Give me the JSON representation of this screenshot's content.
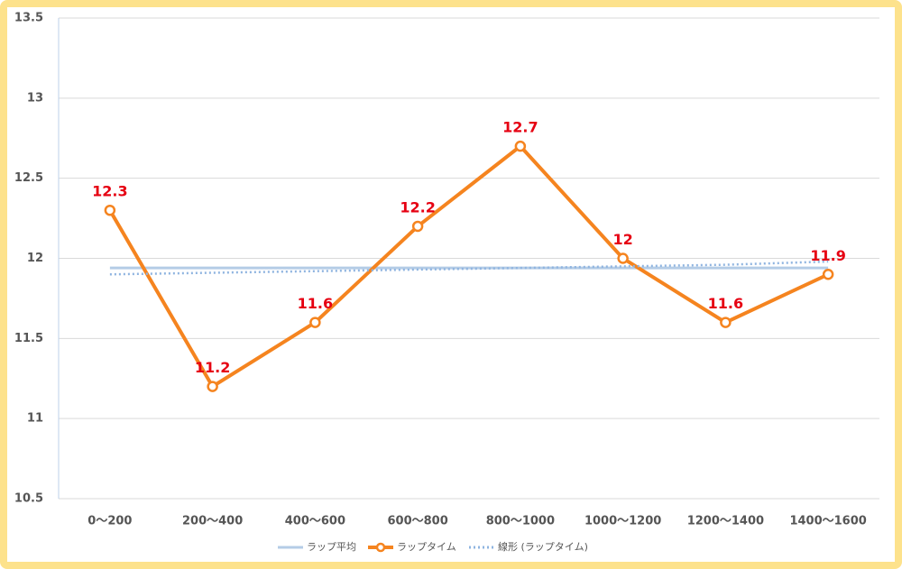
{
  "chart_data": {
    "type": "line",
    "categories": [
      "0～200",
      "200～400",
      "400～600",
      "600～800",
      "800～1000",
      "1000～1200",
      "1200～1400",
      "1400～1600"
    ],
    "series": [
      {
        "name": "ラップ平均",
        "color": "#b4cce6",
        "style": "solid",
        "values": [
          11.94,
          11.94,
          11.94,
          11.94,
          11.94,
          11.94,
          11.94,
          11.94
        ]
      },
      {
        "name": "ラップタイム",
        "color": "#f5841f",
        "style": "marker",
        "data_labels": true,
        "label_color": "#e60012",
        "values": [
          12.3,
          11.2,
          11.6,
          12.2,
          12.7,
          12,
          11.6,
          11.9
        ]
      },
      {
        "name": "線形 (ラップタイム)",
        "color": "#8fb4e0",
        "style": "dotted",
        "values": [
          11.9,
          11.91,
          11.92,
          11.93,
          11.94,
          11.95,
          11.96,
          11.98
        ]
      }
    ],
    "ylim": [
      10.5,
      13.5
    ],
    "yticks": [
      10.5,
      11,
      11.5,
      12,
      12.5,
      13,
      13.5
    ],
    "grid": true,
    "legend": "bottom"
  }
}
